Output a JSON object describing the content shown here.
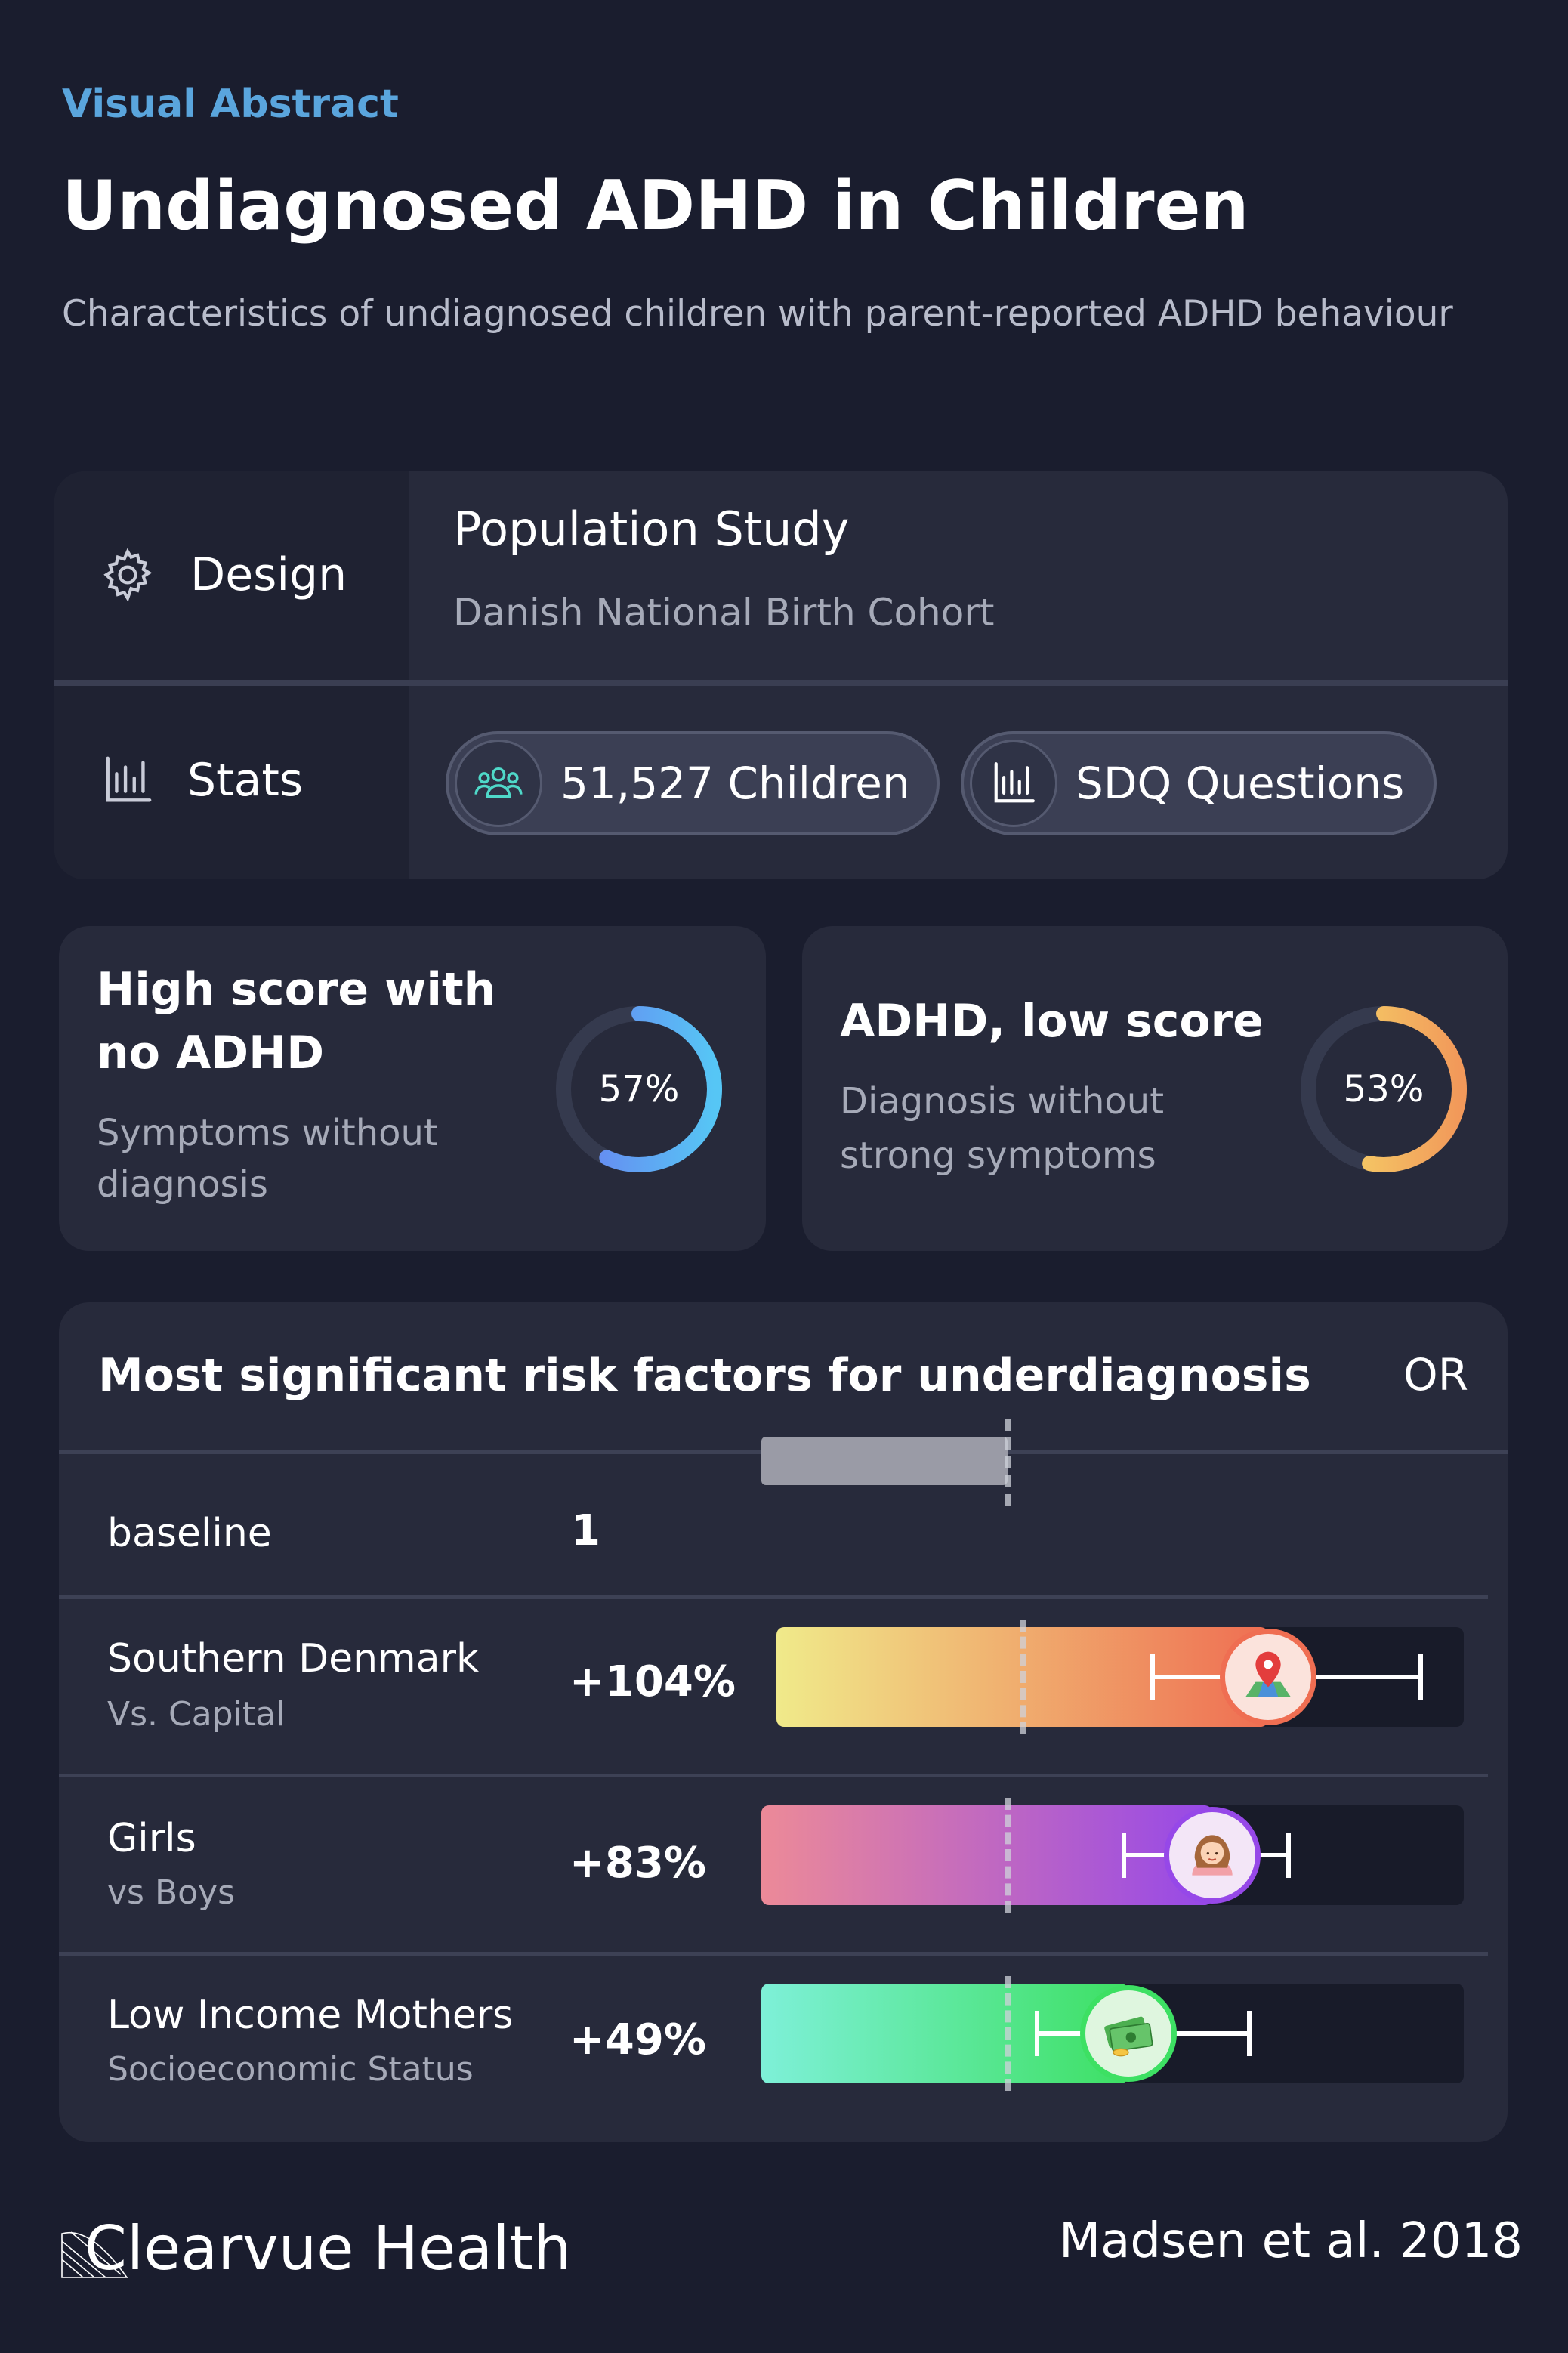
{
  "header": {
    "kicker": "Visual Abstract",
    "title": "Undiagnosed ADHD in Children",
    "subtitle": "Characteristics of undiagnosed children with parent-reported ADHD behaviour"
  },
  "design": {
    "label": "Design",
    "title": "Population Study",
    "subtitle": "Danish National Birth Cohort",
    "icon": "gear-icon"
  },
  "stats": {
    "label": "Stats",
    "icon": "bar-chart-icon",
    "pills": [
      {
        "text": "51,527 Children",
        "icon": "people-icon"
      },
      {
        "text": "SDQ Questions",
        "icon": "bar-chart-icon"
      }
    ]
  },
  "cards": [
    {
      "title_line1": "High score with",
      "title_line2": "no ADHD",
      "sub_line1": "Symptoms without",
      "sub_line2": "diagnosis",
      "percent": 57,
      "percent_label": "57%",
      "colors": [
        "#6a7ef0",
        "#56c6f5"
      ]
    },
    {
      "title_line1": "ADHD, low score",
      "sub_line1": "Diagnosis without",
      "sub_line2": "strong symptoms",
      "percent": 53,
      "percent_label": "53%",
      "colors": [
        "#f5dd6a",
        "#f2995a"
      ]
    }
  ],
  "chart_data": {
    "type": "bar",
    "title": "Most significant risk factors for underdiagnosis",
    "ylabel": "OR",
    "categories": [
      "baseline",
      "Southern Denmark",
      "Girls",
      "Low Income Mothers"
    ],
    "subcategories": [
      "",
      "Vs. Capital",
      "vs Boys",
      "Socioeconomic Status"
    ],
    "value_labels": [
      "1",
      "+104%",
      "+83%",
      "+49%"
    ],
    "values": [
      1.0,
      2.04,
      1.83,
      1.49
    ],
    "ci_low": [
      null,
      1.56,
      1.47,
      1.12
    ],
    "ci_high": [
      null,
      2.67,
      2.14,
      1.98
    ],
    "xlim": [
      0,
      2.85
    ],
    "reference_line": 1.0,
    "badges": [
      null,
      "map-pin-icon",
      "girl-icon",
      "money-icon"
    ],
    "colors": [
      [
        "#9a9ba6",
        "#9a9ba6"
      ],
      [
        "#f0ea8a",
        "#ef6e52"
      ],
      [
        "#ec8a98",
        "#9648e8"
      ],
      [
        "#7ef0d8",
        "#3de063"
      ]
    ]
  },
  "footer": {
    "brand": "Clearvue Health",
    "citation": "Madsen et al. 2018"
  }
}
